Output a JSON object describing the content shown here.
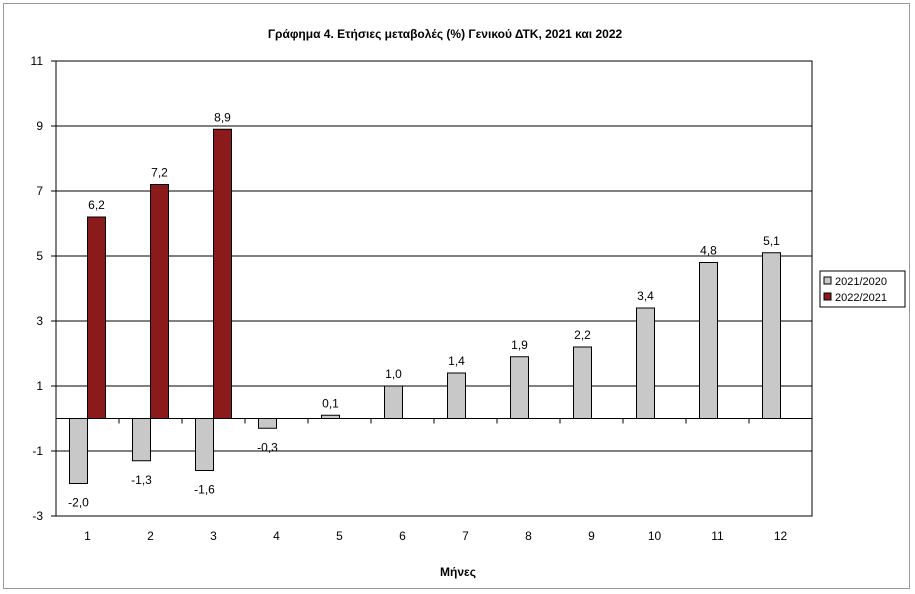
{
  "chart_data": {
    "type": "bar",
    "title": "Γράφημα 4. Ετήσιες μεταβολές (%) Γενικού ΔΤΚ, 2021 και 2022",
    "xlabel": "Μήνες",
    "ylabel": "",
    "categories": [
      "1",
      "2",
      "3",
      "4",
      "5",
      "6",
      "7",
      "8",
      "9",
      "10",
      "11",
      "12"
    ],
    "ylim": [
      -3,
      11
    ],
    "yticks": [
      11,
      9,
      7,
      5,
      3,
      1,
      -1,
      -3
    ],
    "grid": true,
    "legend_position": "right",
    "series": [
      {
        "name": "2021/2020",
        "color": "#c8c8c8",
        "values": [
          -2.0,
          -1.3,
          -1.6,
          -0.3,
          0.1,
          1.0,
          1.4,
          1.9,
          2.2,
          3.4,
          4.8,
          5.1
        ],
        "labels": [
          "-2,0",
          "-1,3",
          "-1,6",
          "-0,3",
          "0,1",
          "1,0",
          "1,4",
          "1,9",
          "2,2",
          "3,4",
          "4,8",
          "5,1"
        ]
      },
      {
        "name": "2022/2021",
        "color": "#8b1a1a",
        "values": [
          6.2,
          7.2,
          8.9,
          null,
          null,
          null,
          null,
          null,
          null,
          null,
          null,
          null
        ],
        "labels": [
          "6,2",
          "7,2",
          "8,9",
          null,
          null,
          null,
          null,
          null,
          null,
          null,
          null,
          null
        ]
      }
    ]
  }
}
